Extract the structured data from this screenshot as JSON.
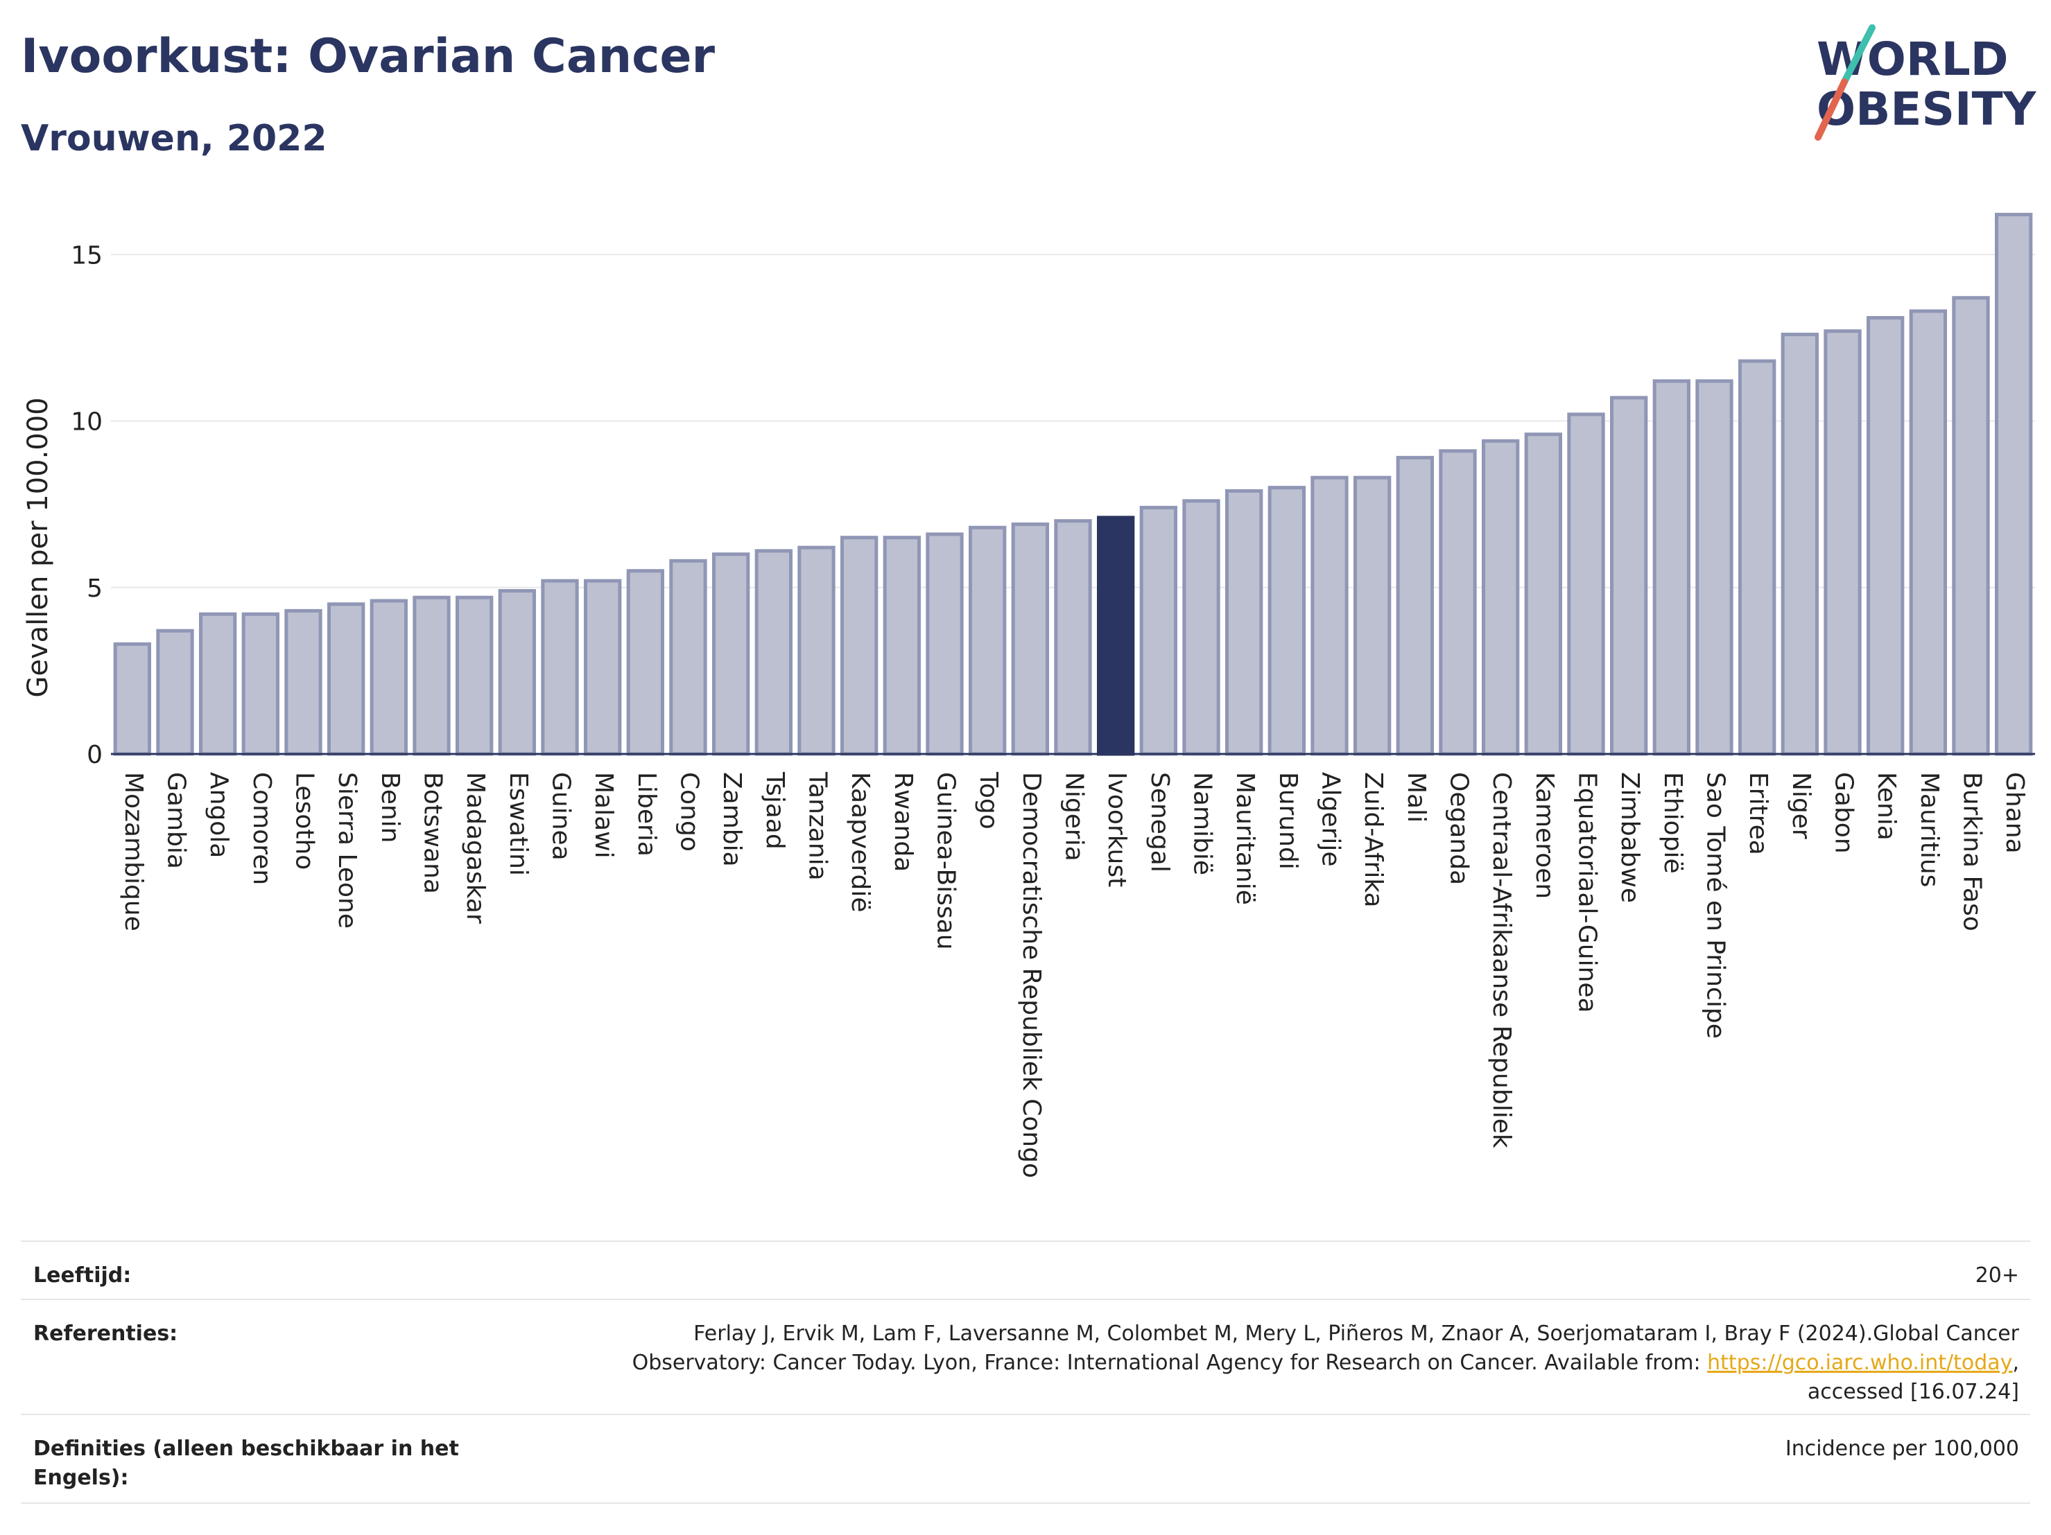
{
  "header": {
    "title": "Ivoorkust: Ovarian Cancer",
    "subtitle": "Vrouwen, 2022"
  },
  "logo": {
    "line1": "WORLD",
    "line2": "OBESITY",
    "accent_colors": [
      "#3fbfad",
      "#e2664f"
    ]
  },
  "colors": {
    "bar": "#bcc0d0",
    "bar_border": "#9096b5",
    "highlight": "#2b3561",
    "axis_text": "#222222",
    "grid": "#e8e8e8"
  },
  "chart_data": {
    "type": "bar",
    "ylabel": "Gevallen per 100.000",
    "xlabel": "",
    "ylim": [
      0,
      16.4
    ],
    "yticks": [
      0,
      5,
      10,
      15
    ],
    "grid": true,
    "highlight_category": "Ivoorkust",
    "categories": [
      "Mozambique",
      "Gambia",
      "Angola",
      "Comoren",
      "Lesotho",
      "Sierra Leone",
      "Benin",
      "Botswana",
      "Madagaskar",
      "Eswatini",
      "Guinea",
      "Malawi",
      "Liberia",
      "Congo",
      "Zambia",
      "Tsjaad",
      "Tanzania",
      "Kaapverdië",
      "Rwanda",
      "Guinea-Bissau",
      "Togo",
      "Democratische Republiek Congo",
      "Nigeria",
      "Ivoorkust",
      "Senegal",
      "Namibië",
      "Mauritanië",
      "Burundi",
      "Algerije",
      "Zuid-Afrika",
      "Mali",
      "Oeganda",
      "Centraal-Afrikaanse Republiek",
      "Kameroen",
      "Equatoriaal-Guinea",
      "Zimbabwe",
      "Ethiopië",
      "Sao Tomé en Principe",
      "Eritrea",
      "Niger",
      "Gabon",
      "Kenia",
      "Mauritius",
      "Burkina Faso",
      "Ghana"
    ],
    "values": [
      3.3,
      3.7,
      4.2,
      4.2,
      4.3,
      4.5,
      4.6,
      4.7,
      4.7,
      4.9,
      5.2,
      5.2,
      5.5,
      5.8,
      6.0,
      6.1,
      6.2,
      6.5,
      6.5,
      6.6,
      6.8,
      6.9,
      7.0,
      7.1,
      7.4,
      7.6,
      7.9,
      8.0,
      8.3,
      8.3,
      8.9,
      9.1,
      9.4,
      9.6,
      10.2,
      10.7,
      11.2,
      11.2,
      11.8,
      12.6,
      12.7,
      13.1,
      13.3,
      13.7,
      16.2
    ]
  },
  "footer": {
    "rows": [
      {
        "label": "Leeftijd:",
        "value": "20+"
      },
      {
        "label": "Referenties:",
        "value_prefix": "Ferlay J, Ervik M, Lam F, Laversanne M, Colombet M, Mery L, Piñeros M, Znaor A, Soerjomataram I, Bray F (2024).Global Cancer Observatory: Cancer Today. Lyon, France: International Agency for Research on Cancer. Available from: ",
        "link": "https://gco.iarc.who.int/today",
        "value_suffix": ", accessed [16.07.24]"
      },
      {
        "label": "Definities (alleen beschikbaar in het Engels):",
        "value": "Incidence per 100,000"
      }
    ]
  }
}
